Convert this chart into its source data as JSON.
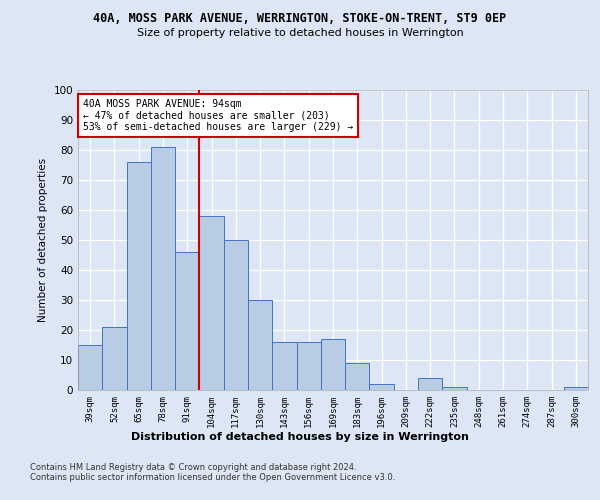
{
  "title1": "40A, MOSS PARK AVENUE, WERRINGTON, STOKE-ON-TRENT, ST9 0EP",
  "title2": "Size of property relative to detached houses in Werrington",
  "xlabel": "Distribution of detached houses by size in Werrington",
  "ylabel": "Number of detached properties",
  "categories": [
    "39sqm",
    "52sqm",
    "65sqm",
    "78sqm",
    "91sqm",
    "104sqm",
    "117sqm",
    "130sqm",
    "143sqm",
    "156sqm",
    "169sqm",
    "183sqm",
    "196sqm",
    "209sqm",
    "222sqm",
    "235sqm",
    "248sqm",
    "261sqm",
    "274sqm",
    "287sqm",
    "300sqm"
  ],
  "values": [
    15,
    21,
    76,
    81,
    46,
    58,
    50,
    30,
    16,
    16,
    17,
    9,
    2,
    0,
    4,
    1,
    0,
    0,
    0,
    0,
    1
  ],
  "bar_color": "#b8cce4",
  "bar_edge_color": "#4472c4",
  "vline_x": 4.5,
  "vline_color": "#cc0000",
  "annotation_text": "40A MOSS PARK AVENUE: 94sqm\n← 47% of detached houses are smaller (203)\n53% of semi-detached houses are larger (229) →",
  "annotation_box_color": "#ffffff",
  "annotation_box_edge": "#cc0000",
  "ylim": [
    0,
    100
  ],
  "yticks": [
    0,
    10,
    20,
    30,
    40,
    50,
    60,
    70,
    80,
    90,
    100
  ],
  "footnote": "Contains HM Land Registry data © Crown copyright and database right 2024.\nContains public sector information licensed under the Open Government Licence v3.0.",
  "background_color": "#dce6f5",
  "grid_color": "#ffffff"
}
